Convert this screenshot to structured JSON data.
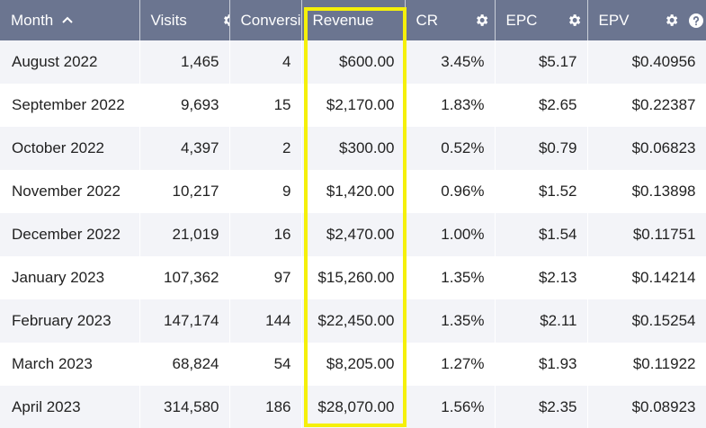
{
  "table": {
    "columns": [
      {
        "key": "month",
        "label": "Month",
        "sort_icon": "chevron-up-icon"
      },
      {
        "key": "visits",
        "label": "Visits"
      },
      {
        "key": "conversions",
        "label": "Conversi"
      },
      {
        "key": "revenue",
        "label": "Revenue"
      },
      {
        "key": "cr",
        "label": "CR",
        "icon": "gear-icon"
      },
      {
        "key": "epc",
        "label": "EPC",
        "icon": "gear-icon"
      },
      {
        "key": "epv",
        "label": "EPV",
        "icon": "gear-icon",
        "help_icon": "help-icon"
      }
    ],
    "rows": [
      {
        "month": "August 2022",
        "visits": "1,465",
        "conversions": "4",
        "revenue": "$600.00",
        "cr": "3.45%",
        "epc": "$5.17",
        "epv": "$0.40956"
      },
      {
        "month": "September 2022",
        "visits": "9,693",
        "conversions": "15",
        "revenue": "$2,170.00",
        "cr": "1.83%",
        "epc": "$2.65",
        "epv": "$0.22387"
      },
      {
        "month": "October 2022",
        "visits": "4,397",
        "conversions": "2",
        "revenue": "$300.00",
        "cr": "0.52%",
        "epc": "$0.79",
        "epv": "$0.06823"
      },
      {
        "month": "November 2022",
        "visits": "10,217",
        "conversions": "9",
        "revenue": "$1,420.00",
        "cr": "0.96%",
        "epc": "$1.52",
        "epv": "$0.13898"
      },
      {
        "month": "December 2022",
        "visits": "21,019",
        "conversions": "16",
        "revenue": "$2,470.00",
        "cr": "1.00%",
        "epc": "$1.54",
        "epv": "$0.11751"
      },
      {
        "month": "January 2023",
        "visits": "107,362",
        "conversions": "97",
        "revenue": "$15,260.00",
        "cr": "1.35%",
        "epc": "$2.13",
        "epv": "$0.14214"
      },
      {
        "month": "February 2023",
        "visits": "147,174",
        "conversions": "144",
        "revenue": "$22,450.00",
        "cr": "1.35%",
        "epc": "$2.11",
        "epv": "$0.15254"
      },
      {
        "month": "March 2023",
        "visits": "68,824",
        "conversions": "54",
        "revenue": "$8,205.00",
        "cr": "1.27%",
        "epc": "$1.93",
        "epv": "$0.11922"
      },
      {
        "month": "April 2023",
        "visits": "314,580",
        "conversions": "186",
        "revenue": "$28,070.00",
        "cr": "1.56%",
        "epc": "$2.35",
        "epv": "$0.08923"
      }
    ]
  },
  "colors": {
    "header_bg": "#6b7590",
    "row_alt_bg": "#f3f4f8",
    "highlight": "#f5f00a"
  }
}
